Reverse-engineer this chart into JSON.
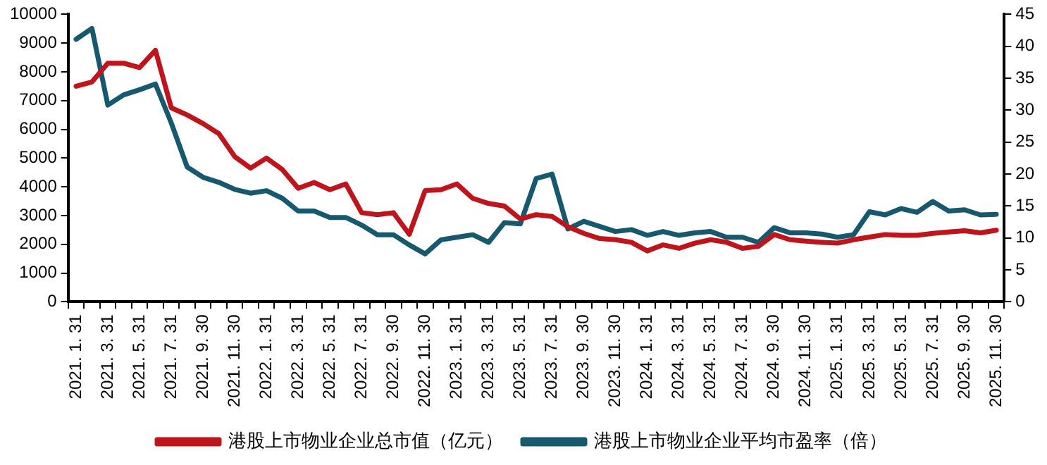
{
  "chart_data": {
    "type": "line",
    "categories": [
      "2021. 1. 31",
      null,
      "2021. 3. 31",
      null,
      "2021. 5. 31",
      null,
      "2021. 7. 31",
      null,
      "2021. 9. 30",
      null,
      "2021. 11. 30",
      null,
      "2022. 1. 31",
      null,
      "2022. 3. 31",
      null,
      "2022. 5. 31",
      null,
      "2022. 7. 31",
      null,
      "2022. 9. 30",
      null,
      "2022. 11. 30",
      null,
      "2023. 1. 31",
      null,
      "2023. 3. 31",
      null,
      "2023. 5. 31",
      null,
      "2023. 7. 31",
      null,
      "2023. 9. 30",
      null,
      "2023. 11. 30",
      null,
      "2024. 1. 31",
      null,
      "2024. 3. 31",
      null,
      "2024. 5. 31",
      null,
      "2024. 7. 31",
      null,
      "2024. 9. 30",
      null,
      "2024. 11. 30",
      null,
      "2025. 1. 31",
      null,
      "2025. 3. 31",
      null,
      "2025. 5. 31",
      null,
      "2025. 7. 31",
      null,
      "2025. 9. 30",
      null,
      "2025. 11. 30"
    ],
    "series": [
      {
        "name": "港股上市物业企业总市值（亿元）",
        "color": "#c0141c",
        "values": [
          7500,
          7650,
          8300,
          8300,
          8150,
          8750,
          6750,
          6500,
          6200,
          5850,
          5050,
          4650,
          5000,
          4600,
          3950,
          4150,
          3900,
          4100,
          3100,
          3030,
          3100,
          2350,
          3870,
          3900,
          4100,
          3600,
          3420,
          3330,
          2880,
          3030,
          2970,
          2610,
          2380,
          2200,
          2160,
          2070,
          1770,
          1980,
          1860,
          2040,
          2160,
          2070,
          1860,
          1930,
          2340,
          2160,
          2110,
          2070,
          2040,
          2160,
          2250,
          2340,
          2310,
          2310,
          2380,
          2430,
          2470,
          2400,
          2490
        ]
      },
      {
        "name": "港股上市物业企业平均市盈率（倍）",
        "color": "#16586e",
        "axis": "y2",
        "values": [
          41.1,
          42.8,
          30.8,
          32.4,
          33.2,
          34.1,
          28,
          21.1,
          19.5,
          18.7,
          17.6,
          17,
          17.4,
          16.2,
          14.2,
          14.2,
          13.2,
          13.2,
          12,
          10.5,
          10.5,
          8.9,
          7.5,
          9.7,
          10.1,
          10.5,
          9.3,
          12.4,
          12.2,
          19.3,
          20,
          11.4,
          12.6,
          11.8,
          11,
          11.3,
          10.4,
          11,
          10.4,
          10.8,
          11,
          10.1,
          10.1,
          9.3,
          11.6,
          10.8,
          10.8,
          10.6,
          10.1,
          10.5,
          14.1,
          13.6,
          14.6,
          14,
          15.7,
          14.2,
          14.4,
          13.6,
          13.7
        ]
      }
    ],
    "ylim": [
      0,
      10000
    ],
    "yticks": [
      0,
      1000,
      2000,
      3000,
      4000,
      5000,
      6000,
      7000,
      8000,
      9000,
      10000
    ],
    "y2lim": [
      0,
      45
    ],
    "y2ticks": [
      0,
      5,
      10,
      15,
      20,
      25,
      30,
      35,
      40,
      45
    ],
    "grid": false,
    "legend": "bottom",
    "marker": "none",
    "line_style": "solid"
  }
}
